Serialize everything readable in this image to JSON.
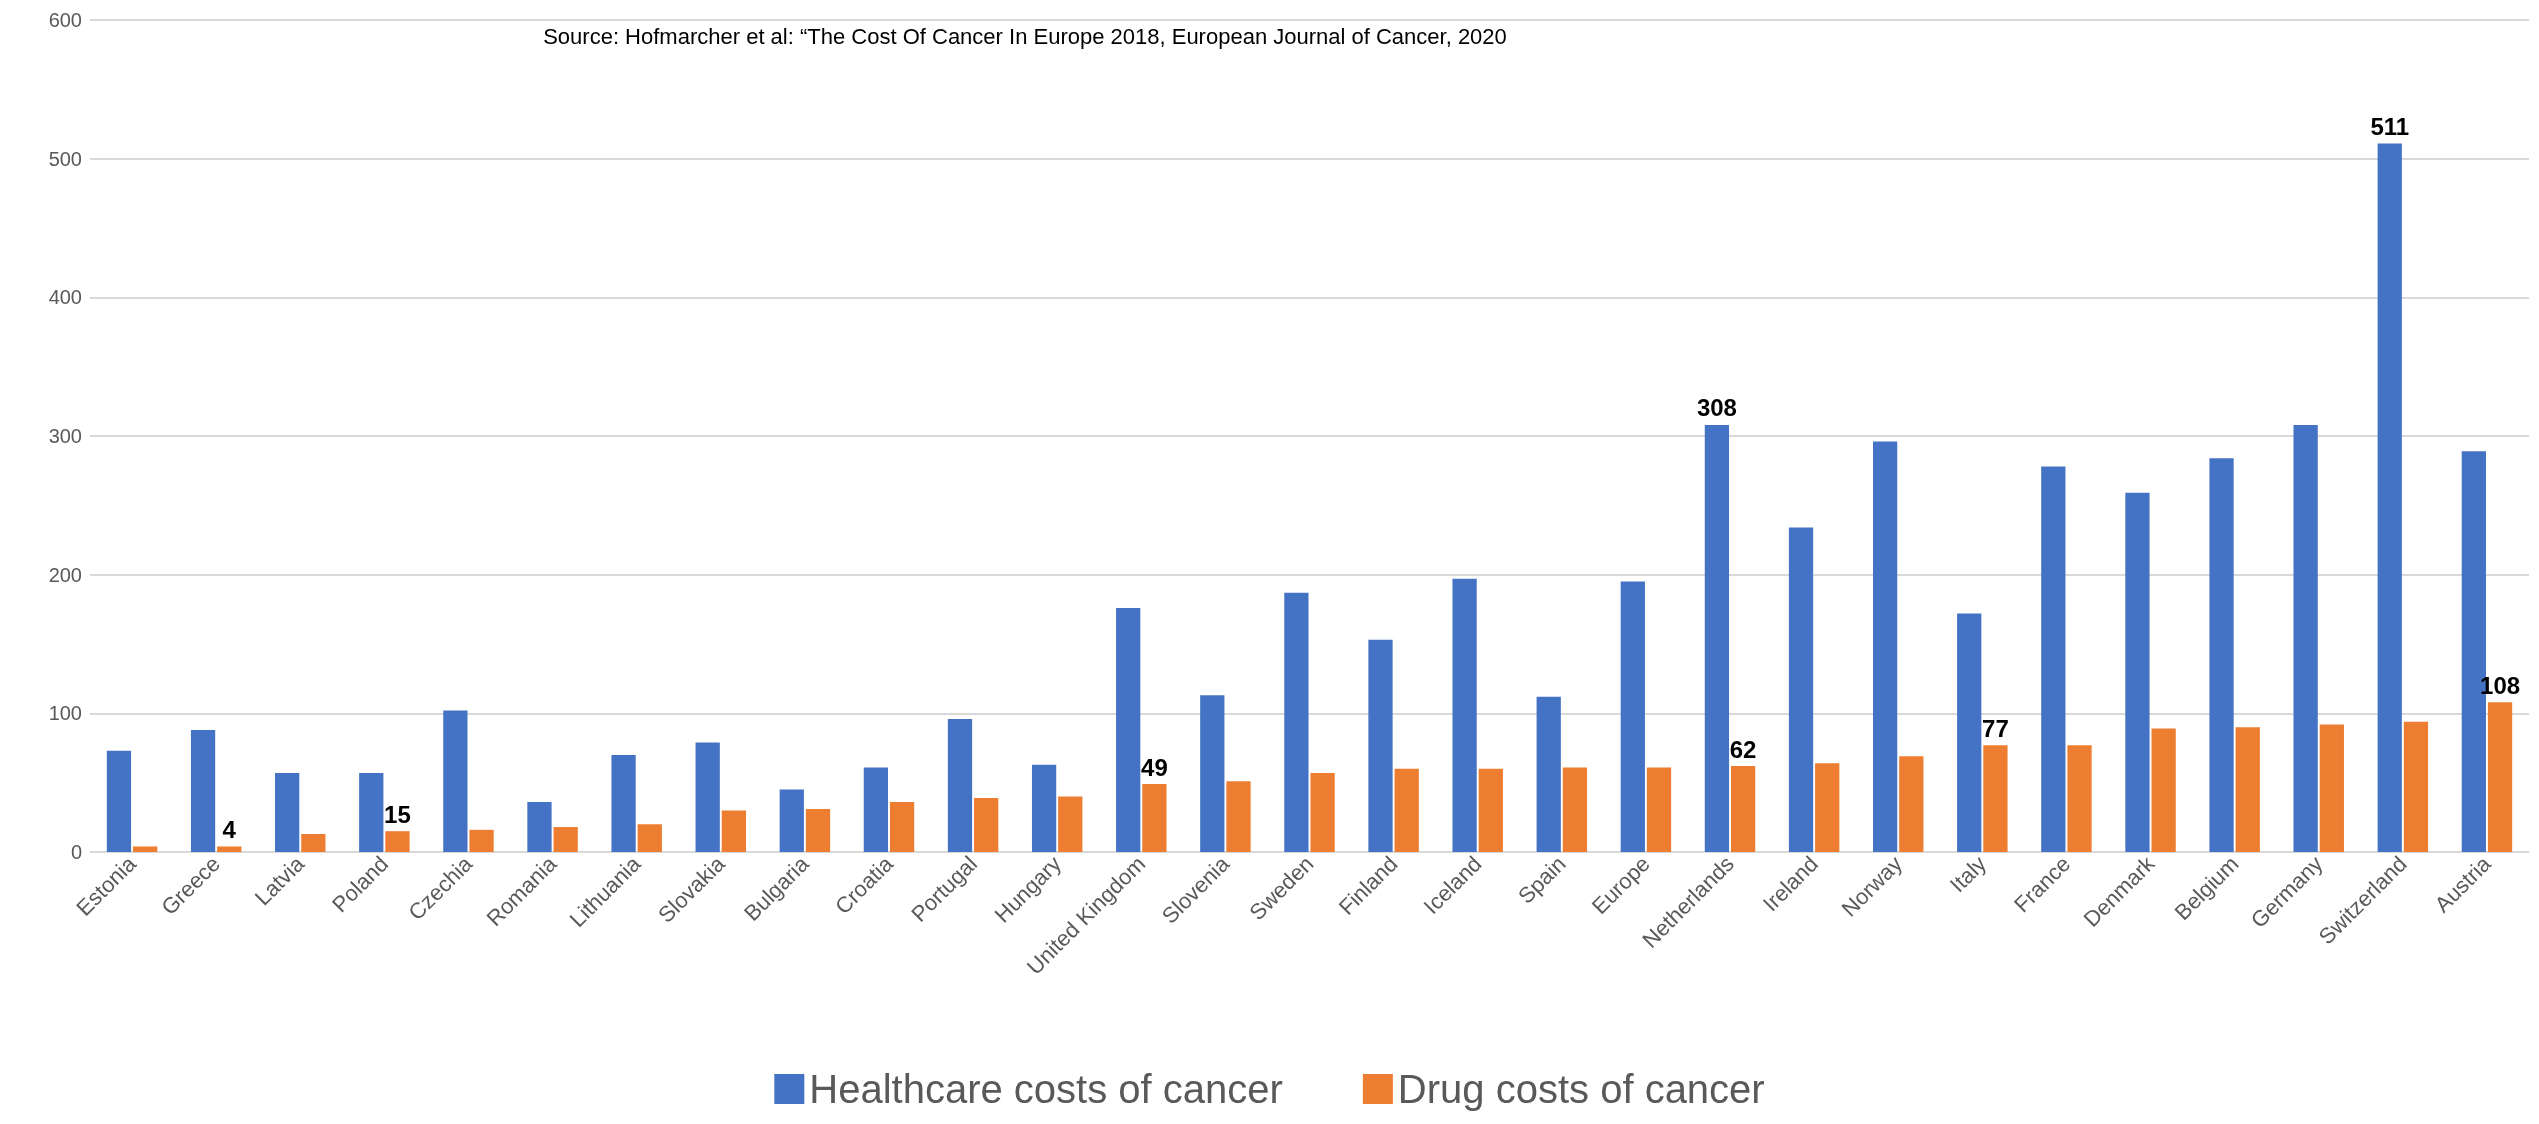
{
  "chart_data": {
    "type": "bar",
    "subtitle": "Source: Hofmarcher et al: “The Cost Of Cancer In Europe 2018, European Journal of Cancer, 2020",
    "categories": [
      "Estonia",
      "Greece",
      "Latvia",
      "Poland",
      "Czechia",
      "Romania",
      "Lithuania",
      "Slovakia",
      "Bulgaria",
      "Croatia",
      "Portugal",
      "Hungary",
      "United Kingdom",
      "Slovenia",
      "Sweden",
      "Finland",
      "Iceland",
      "Spain",
      "Europe",
      "Netherlands",
      "Ireland",
      "Norway",
      "Italy",
      "France",
      "Denmark",
      "Belgium",
      "Germany",
      "Switzerland",
      "Austria"
    ],
    "series": [
      {
        "name": "Healthcare costs of cancer",
        "color": "#4472c4",
        "values": [
          73,
          88,
          57,
          57,
          102,
          36,
          70,
          79,
          45,
          61,
          96,
          63,
          176,
          113,
          187,
          153,
          197,
          112,
          195,
          308,
          234,
          296,
          172,
          278,
          259,
          284,
          308,
          511,
          289
        ],
        "value_labels": [
          null,
          null,
          null,
          null,
          null,
          null,
          null,
          null,
          null,
          null,
          null,
          null,
          null,
          null,
          null,
          null,
          null,
          null,
          null,
          "308",
          null,
          null,
          null,
          null,
          null,
          null,
          null,
          "511",
          null
        ]
      },
      {
        "name": "Drug costs of cancer",
        "color": "#ed7d31",
        "values": [
          4,
          4,
          13,
          15,
          16,
          18,
          20,
          30,
          31,
          36,
          39,
          40,
          49,
          51,
          57,
          60,
          60,
          61,
          61,
          62,
          64,
          69,
          77,
          77,
          89,
          90,
          92,
          94,
          108
        ],
        "value_labels": [
          null,
          "4",
          null,
          "15",
          null,
          null,
          null,
          null,
          null,
          null,
          null,
          null,
          "49",
          null,
          null,
          null,
          null,
          null,
          null,
          "62",
          null,
          null,
          "77",
          null,
          null,
          null,
          null,
          null,
          "108"
        ]
      }
    ],
    "ylim": [
      0,
      600
    ],
    "yticks": [
      0,
      100,
      200,
      300,
      400,
      500,
      600
    ],
    "grid": "y",
    "legend": "bottom"
  }
}
